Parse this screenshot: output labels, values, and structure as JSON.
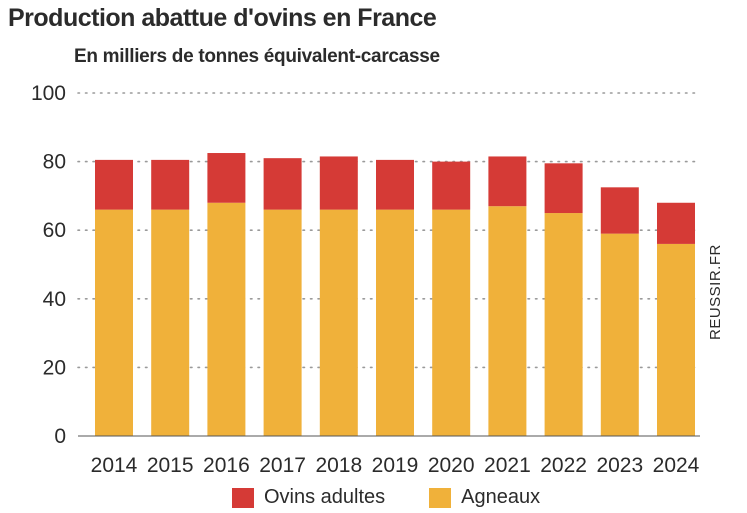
{
  "chart_data": {
    "type": "bar",
    "stacked": true,
    "title": "Production abattue d'ovins en France",
    "subtitle": "En milliers de tonnes équivalent-carcasse",
    "source": "REUSSIR.FR",
    "categories": [
      "2014",
      "2015",
      "2016",
      "2017",
      "2018",
      "2019",
      "2020",
      "2021",
      "2022",
      "2023",
      "2024"
    ],
    "series": [
      {
        "name": "Agneaux",
        "color": "#f0b13a",
        "values": [
          66,
          66,
          68,
          66,
          66,
          66,
          66,
          67,
          65,
          59,
          56
        ]
      },
      {
        "name": "Ovins adultes",
        "color": "#d53a36",
        "values": [
          14.5,
          14.5,
          14.5,
          15,
          15.5,
          14.5,
          14,
          14.5,
          14.5,
          13.5,
          12
        ]
      }
    ],
    "yticks": [
      "0",
      "20",
      "40",
      "60",
      "80",
      "100"
    ],
    "ylim": [
      0,
      100
    ],
    "grid": "dotted horizontal",
    "legend": [
      {
        "label": "Ovins adultes",
        "color": "#d53a36"
      },
      {
        "label": "Agneaux",
        "color": "#f0b13a"
      }
    ]
  }
}
